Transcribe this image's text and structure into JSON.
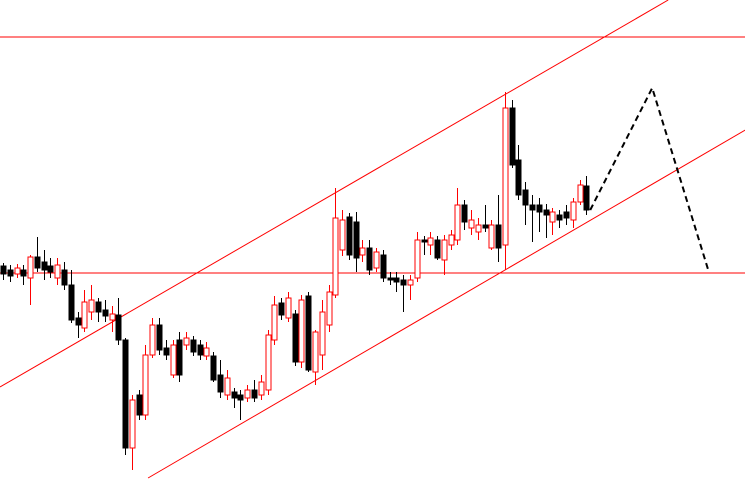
{
  "chart_data": {
    "type": "candlestick",
    "xlim": [
      -0.44,
      109.4
    ],
    "ylim": [
      0,
      490
    ],
    "up_color": "#ff0000",
    "up_fill": "#ffffff",
    "down_color": "#000000",
    "open": [
      224,
      220,
      216,
      220,
      212,
      233,
      228,
      224,
      212,
      220,
      205,
      172,
      162,
      178,
      188,
      180,
      170,
      175,
      150,
      42,
      95,
      75,
      135,
      165,
      142,
      115,
      150,
      145,
      150,
      145,
      134,
      134,
      115,
      95,
      98,
      95,
      92,
      100,
      95,
      100,
      150,
      187,
      172,
      176,
      128,
      194,
      118,
      135,
      165,
      195,
      240,
      273,
      268,
      235,
      242,
      222,
      235,
      212,
      212,
      210,
      205,
      212,
      250,
      245,
      250,
      230,
      245,
      250,
      285,
      262,
      258,
      265,
      242,
      265,
      245,
      382,
      330,
      300,
      285,
      285,
      280,
      268,
      275,
      278,
      270,
      288,
      304
    ],
    "high": [
      227,
      225,
      226,
      225,
      235,
      253,
      240,
      232,
      232,
      228,
      220,
      178,
      200,
      205,
      192,
      190,
      184,
      192,
      152,
      95,
      100,
      145,
      172,
      172,
      150,
      150,
      158,
      158,
      154,
      150,
      148,
      138,
      130,
      120,
      102,
      100,
      105,
      110,
      115,
      160,
      194,
      192,
      198,
      180,
      195,
      198,
      160,
      190,
      205,
      302,
      280,
      277,
      278,
      250,
      250,
      242,
      240,
      218,
      218,
      215,
      215,
      258,
      254,
      258,
      254,
      255,
      260,
      302,
      290,
      280,
      272,
      285,
      270,
      295,
      398,
      390,
      345,
      308,
      295,
      292,
      286,
      282,
      280,
      285,
      292,
      310,
      314
    ],
    "low": [
      210,
      208,
      212,
      205,
      185,
      218,
      210,
      212,
      205,
      200,
      167,
      152,
      158,
      170,
      168,
      168,
      158,
      145,
      35,
      20,
      70,
      70,
      132,
      135,
      130,
      112,
      108,
      140,
      134,
      130,
      130,
      108,
      92,
      90,
      82,
      70,
      88,
      88,
      90,
      95,
      145,
      170,
      168,
      124,
      122,
      118,
      105,
      120,
      158,
      192,
      234,
      230,
      218,
      228,
      215,
      218,
      208,
      205,
      198,
      178,
      190,
      208,
      235,
      235,
      230,
      215,
      240,
      245,
      260,
      255,
      250,
      258,
      240,
      228,
      220,
      322,
      290,
      265,
      248,
      258,
      252,
      255,
      262,
      265,
      262,
      285,
      275
    ],
    "close": [
      216,
      214,
      222,
      214,
      233,
      222,
      220,
      218,
      225,
      205,
      170,
      165,
      188,
      190,
      178,
      174,
      176,
      150,
      42,
      90,
      75,
      135,
      165,
      140,
      135,
      145,
      115,
      152,
      138,
      135,
      142,
      110,
      98,
      112,
      92,
      90,
      100,
      92,
      108,
      155,
      185,
      175,
      192,
      128,
      190,
      120,
      158,
      178,
      198,
      272,
      270,
      235,
      232,
      242,
      220,
      238,
      212,
      210,
      208,
      205,
      210,
      250,
      248,
      252,
      232,
      250,
      255,
      285,
      268,
      270,
      265,
      262,
      265,
      242,
      382,
      325,
      295,
      285,
      280,
      278,
      275,
      278,
      270,
      272,
      288,
      305,
      280
    ],
    "hlines": {
      "color": "#ff0000",
      "values": [
        453,
        217
      ]
    },
    "lines": [
      {
        "color": "#ff0000",
        "x": [
          -0.44,
          98.08
        ],
        "y": [
          103,
          490
        ]
      },
      {
        "color": "#ff0000",
        "x": [
          21.39,
          109.44
        ],
        "y": [
          12,
          360
        ]
      }
    ],
    "dashed_path": {
      "color": "#000000",
      "x": [
        86.58,
        95.72,
        103.98
      ],
      "y": [
        280,
        402,
        220
      ]
    }
  }
}
